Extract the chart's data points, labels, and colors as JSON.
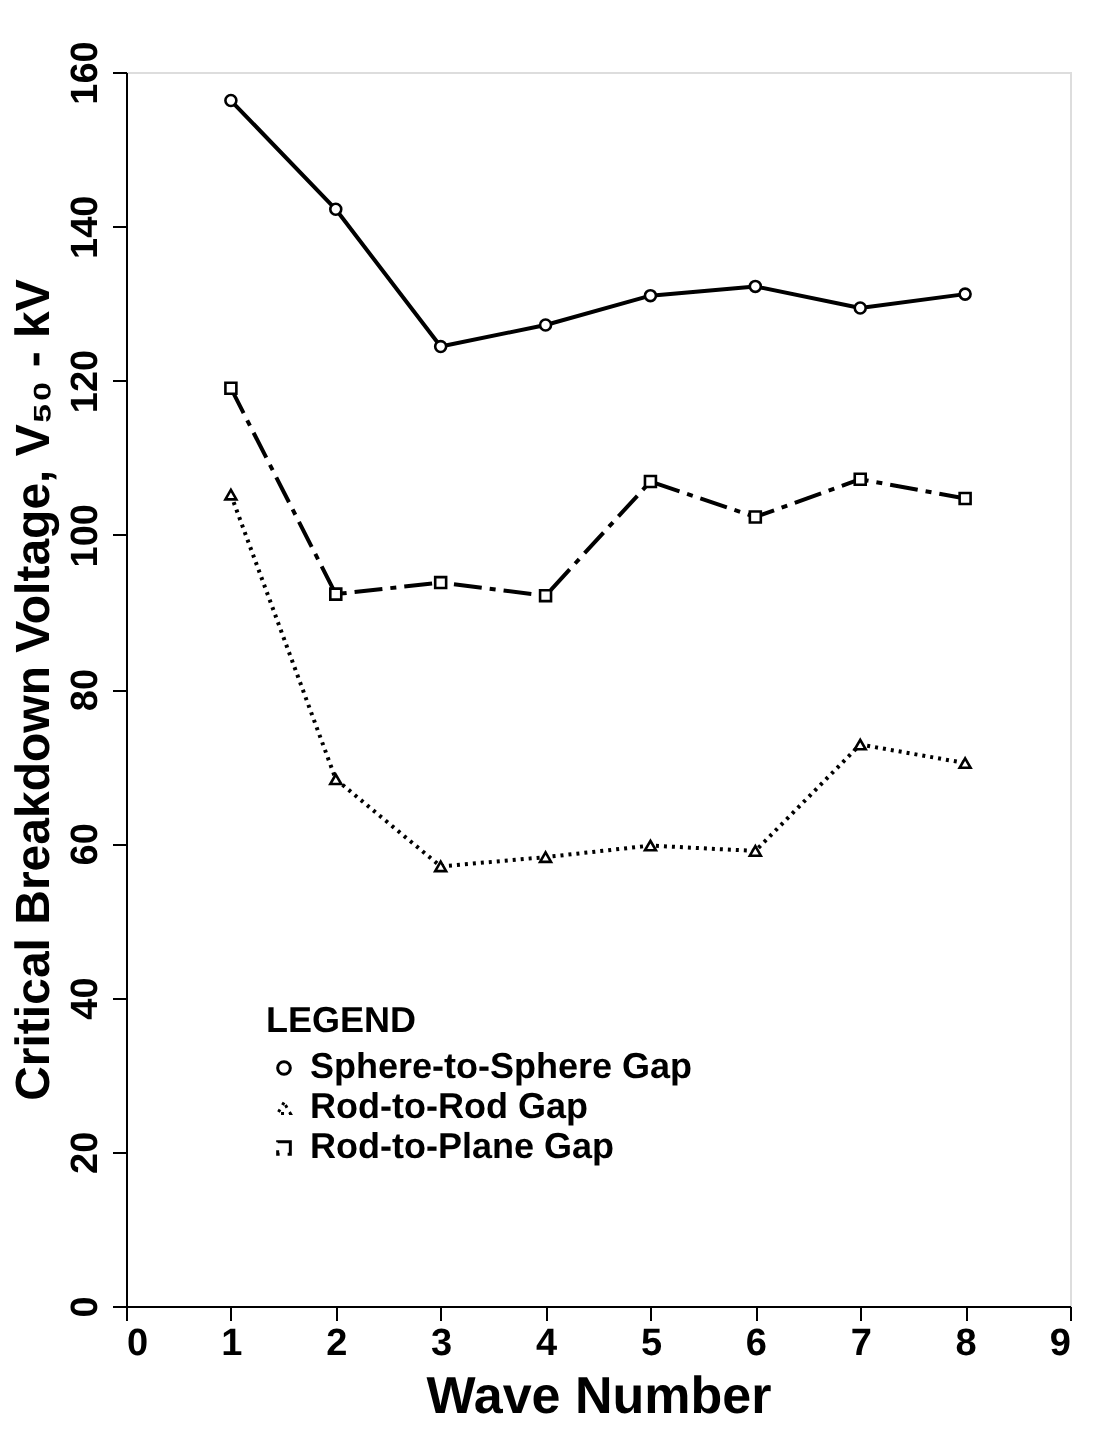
{
  "chart_data": {
    "type": "line",
    "xlabel": "Wave Number",
    "ylabel": "Critical Breakdown Voltage, V₅₀ - kV",
    "legend_title": "LEGEND",
    "x": [
      1,
      2,
      3,
      4,
      5,
      6,
      7,
      8
    ],
    "series": [
      {
        "name": "Sphere-to-Sphere Gap",
        "color": "#000000",
        "marker": "circle",
        "line_style": "solid",
        "values": [
          156.3,
          142.2,
          124.4,
          127.2,
          131.0,
          132.2,
          129.4,
          131.2
        ]
      },
      {
        "name": "Rod-to-Rod Gap",
        "color": "#000000",
        "marker": "triangle",
        "line_style": "dotted",
        "values": [
          105.2,
          68.3,
          57.0,
          58.2,
          59.7,
          59.0,
          72.8,
          70.4
        ]
      },
      {
        "name": "Rod-to-Plane Gap",
        "color": "#000000",
        "marker": "square",
        "line_style": "dashed",
        "values": [
          119.0,
          92.3,
          93.8,
          92.1,
          106.9,
          102.3,
          107.2,
          104.7
        ]
      }
    ],
    "xlim": [
      0,
      9
    ],
    "xticks": [
      0,
      1,
      2,
      3,
      4,
      5,
      6,
      7,
      8,
      9
    ],
    "ylim": [
      0,
      160
    ],
    "yticks": [
      0,
      20,
      40,
      60,
      80,
      100,
      120,
      140,
      160
    ],
    "grid": false,
    "legend": "bottom left"
  }
}
